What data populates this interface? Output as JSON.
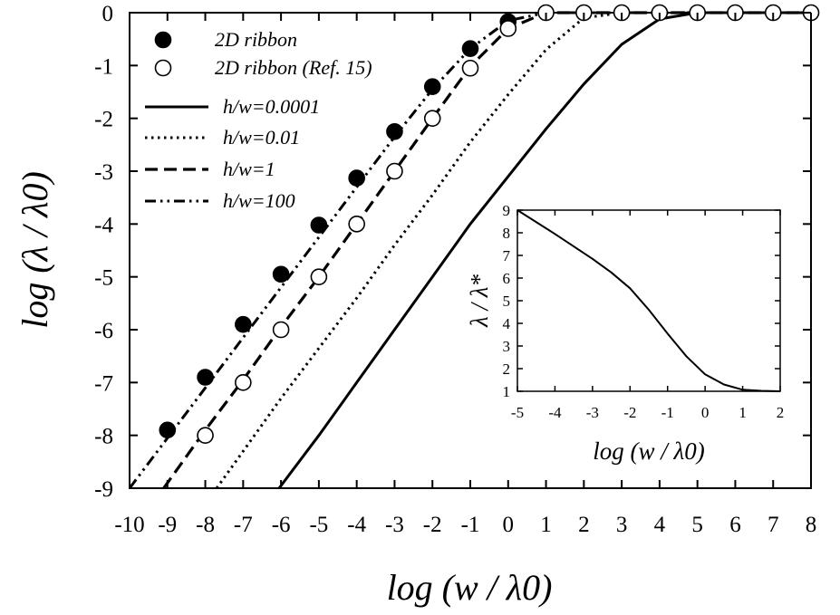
{
  "chart_data": [
    {
      "type": "line",
      "title": "",
      "xlabel": "log (w / λ0)",
      "ylabel": "log (λ / λ0)",
      "xlim": [
        -10,
        8
      ],
      "ylim": [
        -9,
        0
      ],
      "xticks": [
        -10,
        -9,
        -8,
        -7,
        -6,
        -5,
        -4,
        -3,
        -2,
        -1,
        0,
        1,
        2,
        3,
        4,
        5,
        6,
        7,
        8
      ],
      "yticks": [
        0,
        -1,
        -2,
        -3,
        -4,
        -5,
        -6,
        -7,
        -8,
        -9
      ],
      "grid": false,
      "legend_position": "top-left",
      "series": [
        {
          "name": "2D ribbon",
          "type": "scatter",
          "marker": "filled-circle",
          "x": [
            -9,
            -8,
            -7,
            -6,
            -5,
            -4,
            -3,
            -2,
            -1,
            0
          ],
          "y": [
            -7.9,
            -6.9,
            -5.9,
            -4.95,
            -4.02,
            -3.13,
            -2.25,
            -1.4,
            -0.68,
            -0.17
          ]
        },
        {
          "name": "2D ribbon (Ref. 15)",
          "type": "scatter",
          "marker": "open-circle",
          "x": [
            -8,
            -7,
            -6,
            -5,
            -4,
            -3,
            -2,
            -1,
            0,
            1,
            2,
            3,
            4,
            5,
            6,
            7,
            8
          ],
          "y": [
            -8,
            -7,
            -6,
            -5,
            -4,
            -3,
            -2,
            -1.05,
            -0.3,
            0,
            0,
            0,
            0,
            0,
            0,
            0,
            0
          ]
        },
        {
          "name": "h/w=0.0001",
          "type": "line",
          "dash": "solid",
          "x": [
            -6.05,
            -5,
            -4,
            -3,
            -2,
            -1,
            0,
            1,
            2,
            3,
            4,
            5,
            6,
            7,
            8
          ],
          "y": [
            -9,
            -8,
            -7,
            -6,
            -5,
            -4,
            -3.1,
            -2.2,
            -1.35,
            -0.6,
            -0.12,
            0,
            0,
            0,
            0
          ]
        },
        {
          "name": "h/w=0.01",
          "type": "line",
          "dash": "dotted",
          "x": [
            -7.7,
            -7,
            -6,
            -5,
            -4,
            -3,
            -2,
            -1,
            0,
            1,
            2,
            3,
            4,
            5,
            6,
            7,
            8
          ],
          "y": [
            -9,
            -8.3,
            -7.3,
            -6.35,
            -5.4,
            -4.4,
            -3.45,
            -2.45,
            -1.55,
            -0.7,
            -0.1,
            0,
            0,
            0,
            0,
            0,
            0
          ]
        },
        {
          "name": "h/w=1",
          "type": "line",
          "dash": "dashed",
          "x": [
            -9.1,
            -8,
            -7,
            -6,
            -5,
            -4,
            -3,
            -2,
            -1,
            0,
            1,
            2,
            3,
            4,
            5,
            6,
            7,
            8
          ],
          "y": [
            -9,
            -7.9,
            -6.95,
            -5.95,
            -5.0,
            -4.0,
            -3.0,
            -2.0,
            -1.02,
            -0.3,
            0,
            0,
            0,
            0,
            0,
            0,
            0,
            0
          ]
        },
        {
          "name": "h/w=100",
          "type": "line",
          "dash": "dash-dot-dot",
          "x": [
            -10.0,
            -9,
            -8,
            -7,
            -6,
            -5,
            -4,
            -3,
            -2,
            -1,
            0,
            1,
            2,
            3,
            4,
            5,
            6,
            7,
            8
          ],
          "y": [
            -9,
            -8.05,
            -7.1,
            -6.15,
            -5.2,
            -4.25,
            -3.3,
            -2.35,
            -1.45,
            -0.68,
            -0.15,
            0,
            0,
            0,
            0,
            0,
            0,
            0,
            0
          ]
        }
      ]
    },
    {
      "type": "line",
      "title": "",
      "xlabel": "log (w / λ0)",
      "ylabel": "λ / λ*",
      "xlim": [
        -5,
        2
      ],
      "ylim": [
        1,
        9
      ],
      "xticks": [
        -5,
        -4,
        -3,
        -2,
        -1,
        0,
        1,
        2
      ],
      "yticks": [
        1,
        2,
        3,
        4,
        5,
        6,
        7,
        8,
        9
      ],
      "grid": false,
      "series": [
        {
          "type": "line",
          "dash": "solid",
          "x": [
            -5,
            -4,
            -3,
            -2.5,
            -2,
            -1.5,
            -1,
            -0.5,
            0,
            0.5,
            1,
            1.5,
            2
          ],
          "y": [
            9,
            7.95,
            6.85,
            6.25,
            5.55,
            4.6,
            3.55,
            2.55,
            1.75,
            1.3,
            1.07,
            1.02,
            1.0
          ]
        }
      ]
    }
  ]
}
